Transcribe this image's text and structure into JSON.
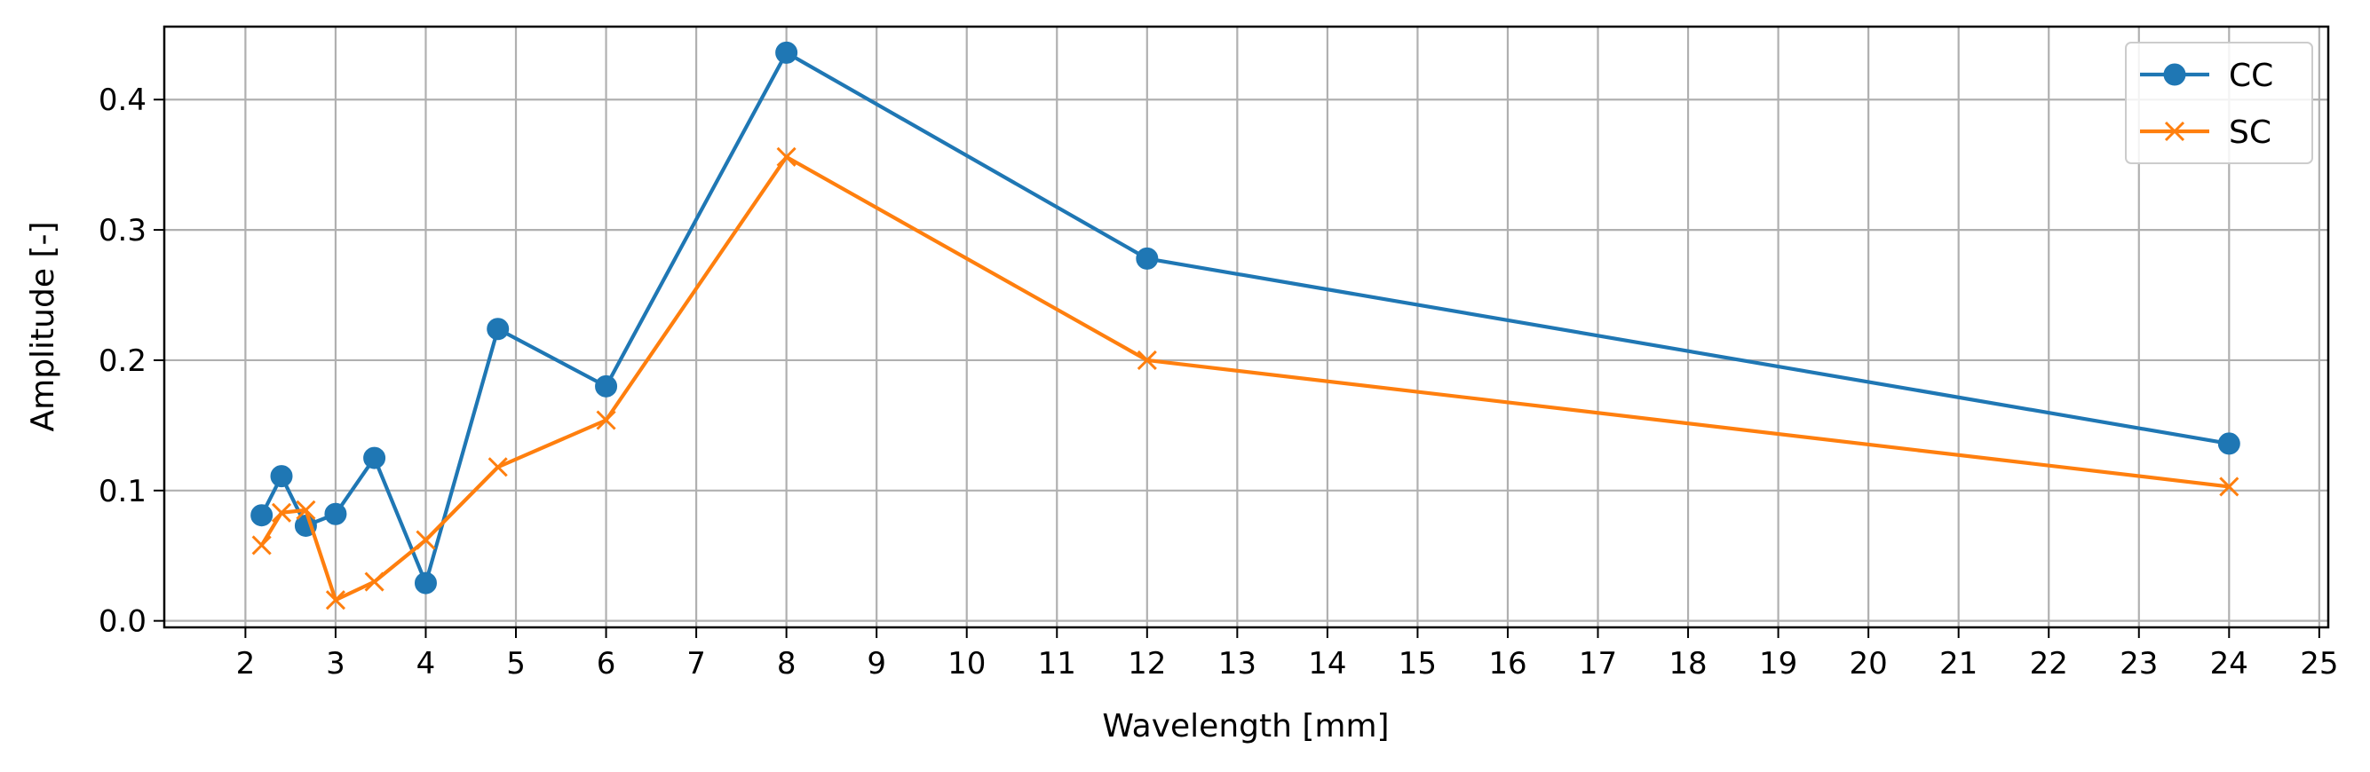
{
  "chart_data": {
    "type": "line",
    "xlabel": "Wavelength [mm]",
    "ylabel": "Amplitude [-]",
    "xlim": [
      1.1,
      25.1
    ],
    "ylim": [
      -0.005,
      0.456
    ],
    "xticks": [
      2,
      3,
      4,
      5,
      6,
      7,
      8,
      9,
      10,
      11,
      12,
      13,
      14,
      15,
      16,
      17,
      18,
      19,
      20,
      21,
      22,
      23,
      24,
      25
    ],
    "yticks": [
      0.0,
      0.1,
      0.2,
      0.3,
      0.4
    ],
    "ytick_labels": [
      "0.0",
      "0.1",
      "0.2",
      "0.3",
      "0.4"
    ],
    "grid": true,
    "legend_position": "top-right",
    "series": [
      {
        "name": "CC",
        "color": "#1f77b4",
        "marker": "circle",
        "x": [
          2.18,
          2.4,
          2.67,
          3.0,
          3.43,
          4.0,
          4.8,
          6.0,
          8.0,
          12.0,
          24.0
        ],
        "y": [
          0.081,
          0.111,
          0.073,
          0.082,
          0.125,
          0.029,
          0.224,
          0.18,
          0.436,
          0.278,
          0.136
        ]
      },
      {
        "name": "SC",
        "color": "#ff7f0e",
        "marker": "x",
        "x": [
          2.18,
          2.4,
          2.67,
          3.0,
          3.43,
          4.0,
          4.8,
          6.0,
          8.0,
          12.0,
          24.0
        ],
        "y": [
          0.058,
          0.083,
          0.085,
          0.016,
          0.03,
          0.062,
          0.118,
          0.154,
          0.356,
          0.2,
          0.103
        ]
      }
    ]
  }
}
